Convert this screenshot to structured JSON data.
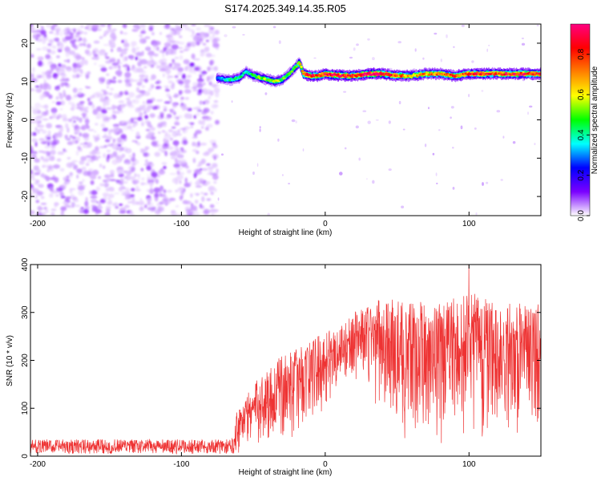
{
  "title": "S174.2025.349.14.35.R05",
  "chart_data": [
    {
      "type": "heatmap",
      "name": "spectrogram",
      "xlabel": "Height of straight line (km)",
      "ylabel": "Frequency (Hz)",
      "xlim": [
        -205,
        150
      ],
      "ylim": [
        -25,
        25
      ],
      "xticks": [
        -200,
        -100,
        0,
        100
      ],
      "yticks": [
        -20,
        -10,
        0,
        10,
        20
      ],
      "colorbar": {
        "label": "Normalized spectral amplitude",
        "range": [
          0.0,
          0.95
        ],
        "ticks": [
          0.0,
          0.2,
          0.4,
          0.6,
          0.8
        ],
        "tick_labels": [
          "0.0",
          "0.2",
          "0.4",
          "0.6",
          "0.8"
        ],
        "colors": [
          "#ffffff",
          "#7a00ff",
          "#0000ff",
          "#00ffff",
          "#00ff00",
          "#ffff00",
          "#ff8000",
          "#ff0000",
          "#ff0080"
        ]
      },
      "noise_region": {
        "x_range": [
          -205,
          -75
        ],
        "y_range": [
          -25,
          25
        ],
        "level_range": [
          0.02,
          0.12
        ]
      },
      "signal_band": {
        "x": [
          -75,
          -70,
          -65,
          -60,
          -55,
          -50,
          -45,
          -40,
          -35,
          -30,
          -25,
          -20,
          -18,
          -15,
          -10,
          -5,
          0,
          10,
          20,
          30,
          40,
          50,
          60,
          70,
          80,
          90,
          100,
          110,
          120,
          130,
          140,
          150
        ],
        "freq": [
          11.0,
          10.5,
          10.5,
          11.0,
          12.5,
          11.5,
          11.0,
          10.5,
          10.0,
          10.5,
          12.0,
          14.0,
          15.0,
          12.0,
          11.5,
          11.5,
          12.0,
          11.5,
          11.5,
          12.0,
          12.0,
          11.5,
          11.5,
          12.0,
          12.0,
          11.5,
          12.0,
          12.0,
          12.0,
          12.0,
          12.0,
          12.0
        ],
        "amplitude": [
          0.3,
          0.35,
          0.4,
          0.45,
          0.35,
          0.45,
          0.55,
          0.5,
          0.6,
          0.5,
          0.45,
          0.5,
          0.55,
          0.8,
          0.85,
          0.75,
          0.85,
          0.9,
          0.8,
          0.9,
          0.9,
          0.75,
          0.65,
          0.7,
          0.7,
          0.75,
          0.8,
          0.85,
          0.8,
          0.85,
          0.85,
          0.8
        ]
      }
    },
    {
      "type": "line",
      "name": "snr",
      "xlabel": "Height of straight line (km)",
      "ylabel": "SNR (10 * v/v)",
      "xlim": [
        -205,
        150
      ],
      "ylim": [
        0,
        400
      ],
      "xticks": [
        -200,
        -100,
        0,
        100
      ],
      "yticks": [
        0,
        100,
        200,
        300,
        400
      ],
      "color": "#ee3333",
      "series": [
        {
          "name": "SNR",
          "envelope": {
            "x": [
              -205,
              -65,
              -62,
              -50,
              -40,
              -30,
              -20,
              -10,
              0,
              10,
              15,
              20,
              25,
              30,
              40,
              50,
              60,
              70,
              80,
              90,
              100,
              110,
              120,
              130,
              140,
              150
            ],
            "low": [
              5,
              5,
              5,
              10,
              15,
              25,
              40,
              60,
              90,
              130,
              150,
              160,
              150,
              120,
              80,
              40,
              30,
              30,
              20,
              20,
              30,
              30,
              40,
              40,
              40,
              40
            ],
            "high": [
              35,
              35,
              95,
              150,
              185,
              210,
              225,
              245,
              260,
              275,
              285,
              300,
              310,
              320,
              330,
              325,
              320,
              325,
              320,
              330,
              350,
              330,
              320,
              325,
              320,
              320
            ]
          },
          "peak": {
            "x": 100,
            "y": 400
          }
        }
      ]
    }
  ]
}
